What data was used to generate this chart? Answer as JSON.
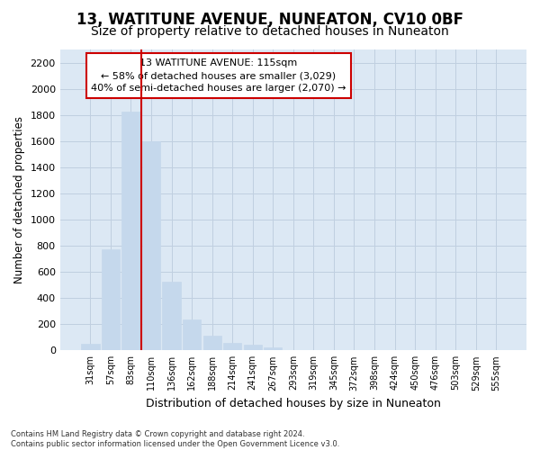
{
  "title": "13, WATITUNE AVENUE, NUNEATON, CV10 0BF",
  "subtitle": "Size of property relative to detached houses in Nuneaton",
  "xlabel": "Distribution of detached houses by size in Nuneaton",
  "ylabel": "Number of detached properties",
  "categories": [
    "31sqm",
    "57sqm",
    "83sqm",
    "110sqm",
    "136sqm",
    "162sqm",
    "188sqm",
    "214sqm",
    "241sqm",
    "267sqm",
    "293sqm",
    "319sqm",
    "345sqm",
    "372sqm",
    "398sqm",
    "424sqm",
    "450sqm",
    "476sqm",
    "503sqm",
    "529sqm",
    "555sqm"
  ],
  "values": [
    50,
    775,
    1825,
    1600,
    525,
    235,
    110,
    60,
    40,
    20,
    5,
    0,
    0,
    0,
    0,
    0,
    0,
    0,
    0,
    0,
    0
  ],
  "bar_color": "#c5d8ec",
  "bar_edgecolor": "#c5d8ec",
  "red_line_index": 3,
  "ylim": [
    0,
    2300
  ],
  "yticks": [
    0,
    200,
    400,
    600,
    800,
    1000,
    1200,
    1400,
    1600,
    1800,
    2000,
    2200
  ],
  "annotation_title": "13 WATITUNE AVENUE: 115sqm",
  "annotation_line1": "← 58% of detached houses are smaller (3,029)",
  "annotation_line2": "40% of semi-detached houses are larger (2,070) →",
  "annotation_box_facecolor": "#ffffff",
  "annotation_box_edgecolor": "#cc0000",
  "red_line_color": "#cc0000",
  "grid_color": "#c0cfe0",
  "plot_bg_color": "#dce8f4",
  "fig_bg_color": "#ffffff",
  "title_fontsize": 12,
  "subtitle_fontsize": 10,
  "footer_line1": "Contains HM Land Registry data © Crown copyright and database right 2024.",
  "footer_line2": "Contains public sector information licensed under the Open Government Licence v3.0."
}
